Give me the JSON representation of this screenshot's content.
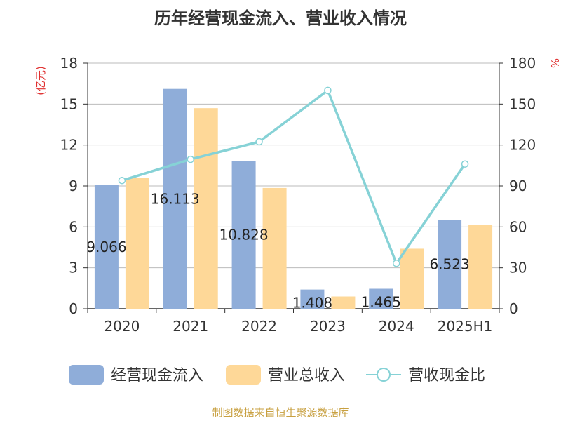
{
  "colors": {
    "title": "#333333",
    "axis_unit": "#e03030",
    "grid": "#bbbbbb",
    "axis": "#333333",
    "series_cash": "#8fadd9",
    "series_rev": "#fed898",
    "series_ratio": "#86d2d6",
    "footer": "#c8a040"
  },
  "chart_data": {
    "type": "bar",
    "title": "历年经营现金流入、营业收入情况",
    "categories": [
      "2020",
      "2021",
      "2022",
      "2023",
      "2024",
      "2025H1"
    ],
    "left_axis": {
      "unit": "(亿元)",
      "ylim": [
        0,
        18
      ],
      "ticks": [
        "0",
        "3",
        "6",
        "9",
        "12",
        "15",
        "18"
      ]
    },
    "right_axis": {
      "unit": "%",
      "ylim": [
        0,
        180
      ],
      "ticks": [
        "0",
        "30",
        "60",
        "90",
        "120",
        "150",
        "180"
      ]
    },
    "series": [
      {
        "name": "经营现金流入",
        "type": "bar",
        "axis": "left",
        "color": "#8fadd9",
        "values": [
          9.066,
          16.113,
          10.828,
          1.408,
          1.465,
          6.523
        ],
        "data_labels": [
          "9.066",
          "16.113",
          "10.828",
          "1.408",
          "1.465",
          "6.523"
        ]
      },
      {
        "name": "营业总收入",
        "type": "bar",
        "axis": "left",
        "color": "#fed898",
        "values": [
          9.6,
          14.7,
          8.85,
          0.9,
          4.4,
          6.15
        ]
      },
      {
        "name": "营收现金比",
        "type": "line",
        "axis": "right",
        "color": "#86d2d6",
        "values": [
          94.0,
          109.5,
          122.4,
          160.0,
          33.3,
          106.1
        ]
      }
    ],
    "legend_position": "bottom",
    "grid": true
  },
  "footer": {
    "source": "制图数据来自恒生聚源数据库"
  }
}
